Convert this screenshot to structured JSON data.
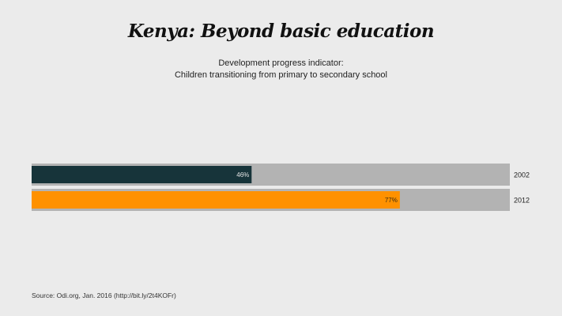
{
  "header": {
    "title": "Kenya: Beyond basic education",
    "subtitle_line1": "Development progress indicator:",
    "subtitle_line2": "Children transitioning from primary to secondary school"
  },
  "footer": {
    "source": "Source: Odi.org, Jan. 2016  (http://bit.ly/2t4KOFr)"
  },
  "colors": {
    "background": "#ebebeb",
    "track": "#b3b3b3",
    "bar_2002": "#17343a",
    "bar_2012": "#ff9100"
  },
  "chart_data": {
    "type": "bar",
    "orientation": "horizontal",
    "categories": [
      "2002",
      "2012"
    ],
    "values": [
      46,
      77
    ],
    "data_labels": [
      "46%",
      "77%"
    ],
    "xlim": [
      0,
      100
    ],
    "grid": false
  }
}
